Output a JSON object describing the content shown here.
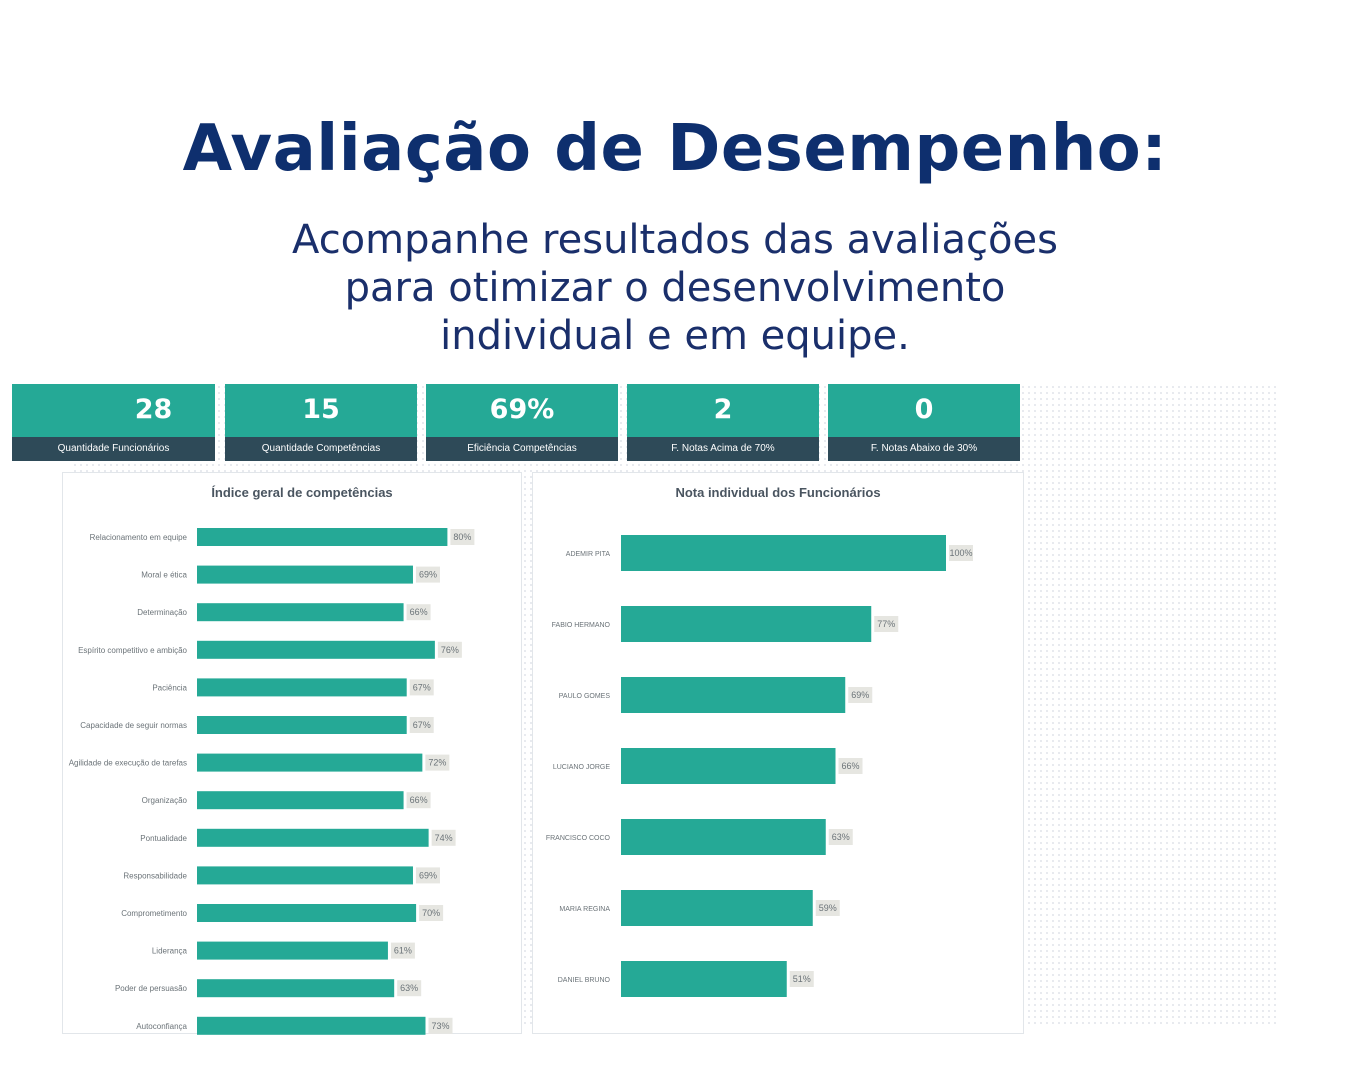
{
  "header": {
    "title": "Avaliação de Desempenho:",
    "subtitle_lines": [
      "Acompanhe resultados das avaliações",
      "para otimizar o desenvolvimento",
      "individual e em equipe."
    ]
  },
  "kpis": [
    {
      "value": "28",
      "label": "Quantidade Funcionários"
    },
    {
      "value": "15",
      "label": "Quantidade Competências"
    },
    {
      "value": "69%",
      "label": "Eficiência Competências"
    },
    {
      "value": "2",
      "label": "F. Notas Acima de 70%"
    },
    {
      "value": "0",
      "label": "F. Notas Abaixo de 30%"
    }
  ],
  "colors": {
    "title": "#0e2f6e",
    "accent": "#25a996",
    "kpi_label_bg": "#2e4a58"
  },
  "chart_data": [
    {
      "type": "bar",
      "orientation": "horizontal",
      "title": "Índice geral de competências",
      "categories": [
        "Relacionamento em equipe",
        "Moral e ética",
        "Determinação",
        "Espírito competitivo e ambição",
        "Paciência",
        "Capacidade de seguir normas",
        "Agilidade de execução de tarefas",
        "Organização",
        "Pontualidade",
        "Responsabilidade",
        "Comprometimento",
        "Liderança",
        "Poder de persuasão",
        "Autoconfiança"
      ],
      "values": [
        80,
        69,
        66,
        76,
        67,
        67,
        72,
        66,
        74,
        69,
        70,
        61,
        63,
        73
      ],
      "value_format": "percent",
      "xlim": [
        0,
        100
      ]
    },
    {
      "type": "bar",
      "orientation": "horizontal",
      "title": "Nota individual dos Funcionários",
      "categories": [
        "ADEMIR PITA",
        "FABIO HERMANO",
        "PAULO GOMES",
        "LUCIANO JORGE",
        "FRANCISCO COCO",
        "MARIA REGINA",
        "DANIEL BRUNO"
      ],
      "values": [
        100,
        77,
        69,
        66,
        63,
        59,
        51
      ],
      "value_format": "percent",
      "xlim": [
        0,
        100
      ]
    }
  ]
}
